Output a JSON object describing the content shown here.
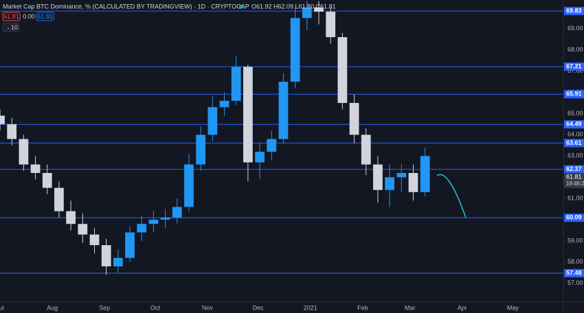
{
  "toolbar": {
    "title": "Market Cap BTC Dominance, % (CALCULATED BY TRADINGVIEW) · 1D · CRYPTOCAP",
    "ohlc": "O61.92 H62.09 L61.80 C61.81",
    "sell": "61.81",
    "spread": "0.00",
    "buy": "61.81",
    "interval": "10"
  },
  "chart_data": {
    "type": "candlestick",
    "x": [
      0,
      7,
      14,
      21,
      28,
      35,
      42,
      49,
      56,
      63,
      70,
      77,
      84,
      91,
      98,
      105,
      112,
      119,
      126,
      133,
      140,
      147,
      154,
      161,
      168,
      175,
      182,
      189,
      196,
      203,
      210,
      217,
      224,
      231,
      238,
      245,
      252
    ],
    "open": [
      64.9,
      64.5,
      63.8,
      62.6,
      62.2,
      61.5,
      60.4,
      59.8,
      59.3,
      58.8,
      57.8,
      58.2,
      59.4,
      59.8,
      60.0,
      60.1,
      60.6,
      62.6,
      64.0,
      65.3,
      65.6,
      67.2,
      62.7,
      63.2,
      63.8,
      66.5,
      69.5,
      70.0,
      69.8,
      68.6,
      65.5,
      64.0,
      62.6,
      61.4,
      62.0,
      62.2,
      61.3
    ],
    "high": [
      65.2,
      64.8,
      64.0,
      63.0,
      62.6,
      61.8,
      60.9,
      60.3,
      59.6,
      59.1,
      58.6,
      59.7,
      60.2,
      60.4,
      60.5,
      61.0,
      63.1,
      64.4,
      65.8,
      66.0,
      67.7,
      67.3,
      63.6,
      64.2,
      66.9,
      70.0,
      70.3,
      70.3,
      70.0,
      68.8,
      65.9,
      64.3,
      63.0,
      62.6,
      62.6,
      62.6,
      63.4
    ],
    "low": [
      64.2,
      63.5,
      62.3,
      61.9,
      61.2,
      60.1,
      59.5,
      58.9,
      58.4,
      57.4,
      57.5,
      58.0,
      59.0,
      59.4,
      59.6,
      59.8,
      60.4,
      62.3,
      63.7,
      64.9,
      65.4,
      61.8,
      61.9,
      62.8,
      63.6,
      66.2,
      68.9,
      69.2,
      68.3,
      65.2,
      63.6,
      62.1,
      60.8,
      60.6,
      61.3,
      60.9,
      61.1
    ],
    "close": [
      64.5,
      63.8,
      62.6,
      62.2,
      61.5,
      60.4,
      59.8,
      59.3,
      58.8,
      57.8,
      58.2,
      59.4,
      59.8,
      60.0,
      60.1,
      60.6,
      62.6,
      64.0,
      65.3,
      65.6,
      67.2,
      62.7,
      63.2,
      63.8,
      66.5,
      69.5,
      70.0,
      69.8,
      68.6,
      65.5,
      64.0,
      62.6,
      61.4,
      62.0,
      62.2,
      61.3,
      63.0
    ],
    "xlim": [
      0,
      334
    ],
    "xticks": [
      {
        "value": 0,
        "label": "Jul"
      },
      {
        "value": 31,
        "label": "Aug"
      },
      {
        "value": 62,
        "label": "Sep"
      },
      {
        "value": 92,
        "label": "Oct"
      },
      {
        "value": 123,
        "label": "Nov"
      },
      {
        "value": 153,
        "label": "Dec"
      },
      {
        "value": 184,
        "label": "2021"
      },
      {
        "value": 215,
        "label": "Feb"
      },
      {
        "value": 243,
        "label": "Mar"
      },
      {
        "value": 274,
        "label": "Apr"
      },
      {
        "value": 304,
        "label": "May"
      }
    ],
    "ylim": [
      56.12,
      70.35
    ],
    "yticks": [
      {
        "value": 57,
        "label": "57.00"
      },
      {
        "value": 58,
        "label": "58.00"
      },
      {
        "value": 59,
        "label": "59.00"
      },
      {
        "value": 60,
        "label": "60.00"
      },
      {
        "value": 61,
        "label": "61.00"
      },
      {
        "value": 62,
        "label": "62.00"
      },
      {
        "value": 63,
        "label": "63.00"
      },
      {
        "value": 64,
        "label": "64.00"
      },
      {
        "value": 65,
        "label": "65.00"
      },
      {
        "value": 66,
        "label": "66.00"
      },
      {
        "value": 67,
        "label": "67.00"
      },
      {
        "value": 68,
        "label": "68.00"
      },
      {
        "value": 69,
        "label": "69.00"
      }
    ],
    "levels": [
      {
        "value": 69.83,
        "label": "69.83"
      },
      {
        "value": 67.21,
        "label": "67.21"
      },
      {
        "value": 65.91,
        "label": "65.91"
      },
      {
        "value": 64.49,
        "label": "64.49"
      },
      {
        "value": 63.61,
        "label": "63.61"
      },
      {
        "value": 62.37,
        "label": "62.37"
      },
      {
        "value": 60.09,
        "label": "60.09"
      },
      {
        "value": 57.48,
        "label": "57.48"
      }
    ],
    "last_price": {
      "value": 61.81,
      "label": "61.81"
    },
    "countdown": "19:46:2",
    "up_color": "#2196f3",
    "down_color": "#d1d4dc",
    "level_color": "#2962ff"
  }
}
